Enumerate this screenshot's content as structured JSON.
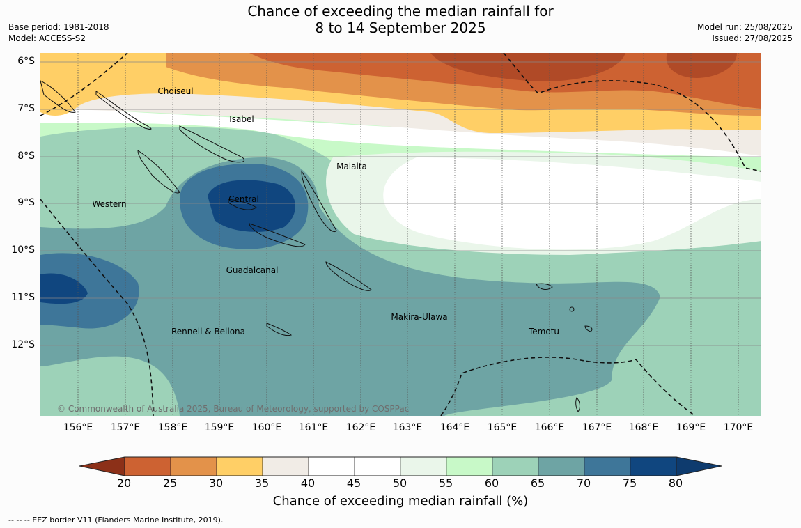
{
  "title": {
    "line1": "Chance of exceeding the median rainfall for",
    "line2": "8 to 14 September 2025"
  },
  "meta_left": {
    "base_period": "Base period: 1981-2018",
    "model": "Model: ACCESS-S2"
  },
  "meta_right": {
    "model_run": "Model run: 25/08/2025",
    "issued": "Issued: 27/08/2025"
  },
  "map": {
    "lon_labels": [
      "156°E",
      "157°E",
      "158°E",
      "159°E",
      "160°E",
      "161°E",
      "162°E",
      "163°E",
      "164°E",
      "165°E",
      "166°E",
      "167°E",
      "168°E",
      "169°E",
      "170°E"
    ],
    "lat_labels": [
      "6°S",
      "7°S",
      "8°S",
      "9°S",
      "10°S",
      "11°S",
      "12°S"
    ],
    "places": [
      "Choiseul",
      "Isabel",
      "Malaita",
      "Central",
      "Western",
      "Guadalcanal",
      "Makira-Ulawa",
      "Temotu",
      "Rennell & Bellona"
    ],
    "copyright": "© Commonwealth of Australia 2025, Bureau of Meteorology, supported by COSPPac"
  },
  "colorbar": {
    "ticks": [
      "20",
      "25",
      "30",
      "35",
      "40",
      "45",
      "50",
      "55",
      "60",
      "65",
      "70",
      "75",
      "80"
    ],
    "colors": [
      "#b04a27",
      "#cd6232",
      "#e3924a",
      "#ffcf66",
      "#f1ece6",
      "#ffffff",
      "#ffffff",
      "#eaf6ea",
      "#c8f9c8",
      "#9dd2b8",
      "#6ea4a4",
      "#3e7699",
      "#10467f"
    ],
    "label": "Chance of exceeding median rainfall (%)"
  },
  "footnote": "--  --  -- EEZ border V11 (Flanders Marine Institute, 2019)."
}
